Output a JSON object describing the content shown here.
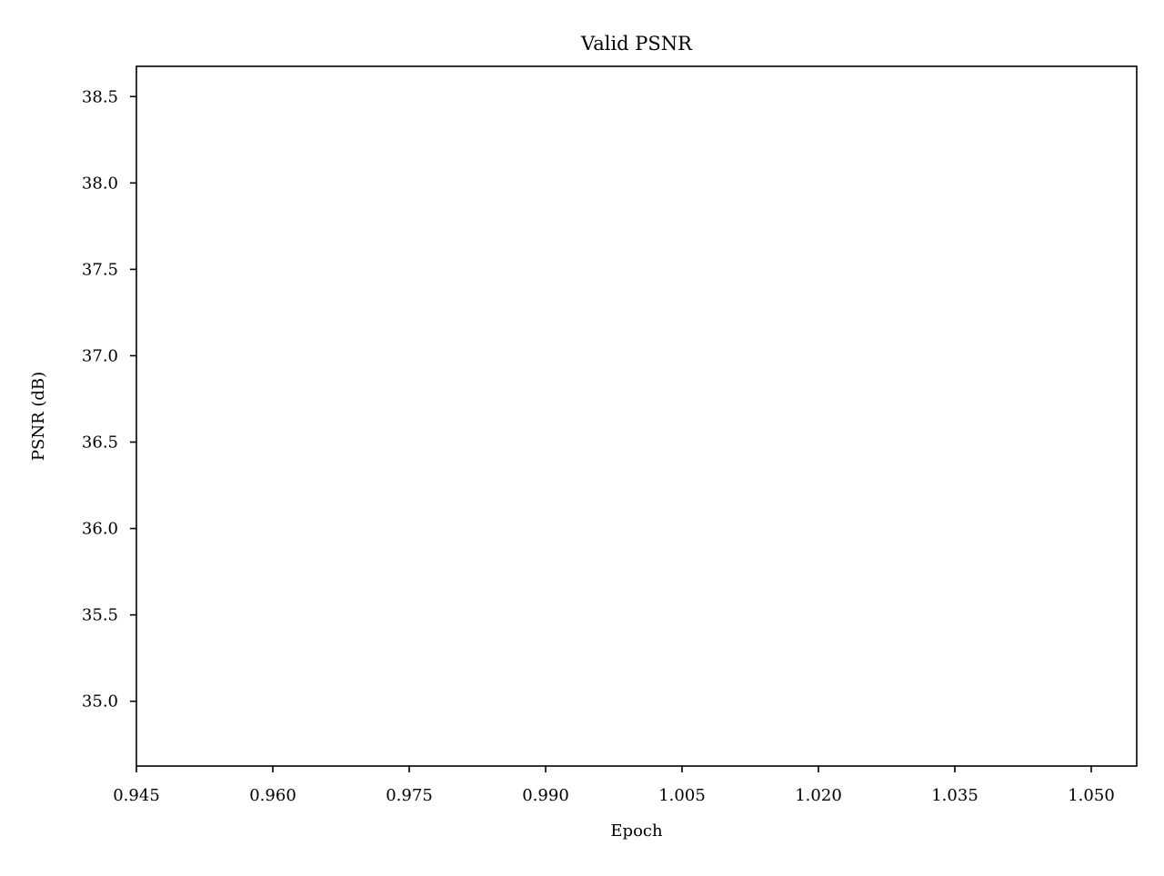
{
  "chart_data": {
    "type": "line",
    "title": "Valid PSNR",
    "xlabel": "Epoch",
    "ylabel": "PSNR (dB)",
    "xlim": [
      0.945,
      1.055
    ],
    "ylim": [
      34.625,
      38.675
    ],
    "x_ticks": [
      "0.945",
      "0.960",
      "0.975",
      "0.990",
      "1.005",
      "1.020",
      "1.035",
      "1.050"
    ],
    "y_ticks": [
      "35.0",
      "35.5",
      "36.0",
      "36.5",
      "37.0",
      "37.5",
      "38.0",
      "38.5"
    ],
    "grid": false,
    "series": []
  }
}
